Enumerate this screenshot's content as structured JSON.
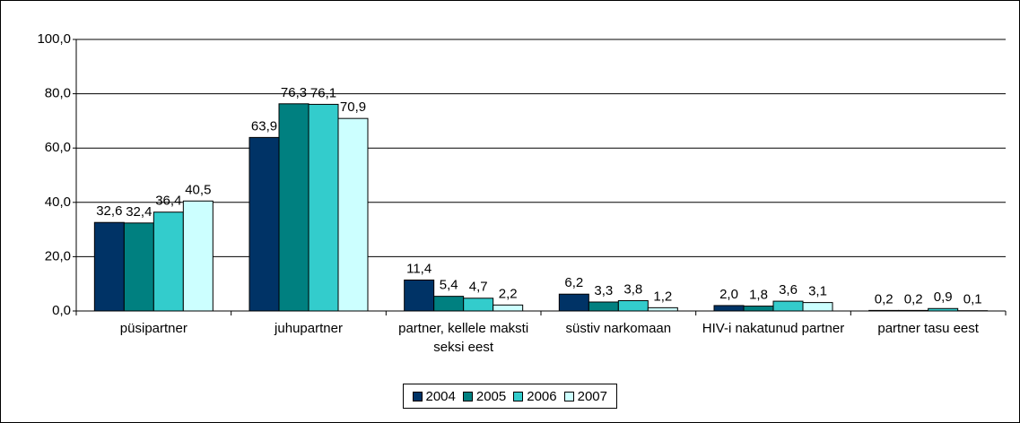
{
  "chart_data": {
    "type": "bar",
    "categories": [
      "püsipartner",
      "juhupartner",
      "partner, kellele maksti seksi eest",
      "süstiv narkomaan",
      "HIV-i nakatunud partner",
      "partner tasu eest"
    ],
    "series": [
      {
        "name": "2004",
        "color": "#003366",
        "values": [
          32.6,
          63.9,
          11.4,
          6.2,
          2.0,
          0.2
        ],
        "value_labels": [
          "32,6",
          "63,9",
          "11,4",
          "6,2",
          "2,0",
          "0,2"
        ]
      },
      {
        "name": "2005",
        "color": "#008080",
        "values": [
          32.4,
          76.3,
          5.4,
          3.3,
          1.8,
          0.2
        ],
        "value_labels": [
          "32,4",
          "76,3",
          "5,4",
          "3,3",
          "1,8",
          "0,2"
        ]
      },
      {
        "name": "2006",
        "color": "#33cccc",
        "values": [
          36.4,
          76.1,
          4.7,
          3.8,
          3.6,
          0.9
        ],
        "value_labels": [
          "36,4",
          "76,1",
          "4,7",
          "3,8",
          "3,6",
          "0,9"
        ]
      },
      {
        "name": "2007",
        "color": "#ccffff",
        "values": [
          40.5,
          70.9,
          2.2,
          1.2,
          3.1,
          0.1
        ],
        "value_labels": [
          "40,5",
          "70,9",
          "2,2",
          "1,2",
          "3,1",
          "0,1"
        ]
      }
    ],
    "ylim": [
      0,
      100
    ],
    "yticks": [
      {
        "value": 0,
        "label": "0,0"
      },
      {
        "value": 20,
        "label": "20,0"
      },
      {
        "value": 40,
        "label": "40,0"
      },
      {
        "value": 60,
        "label": "60,0"
      },
      {
        "value": 80,
        "label": "80,0"
      },
      {
        "value": 100,
        "label": "100,0"
      }
    ],
    "grid": true,
    "legend": "bottom"
  }
}
